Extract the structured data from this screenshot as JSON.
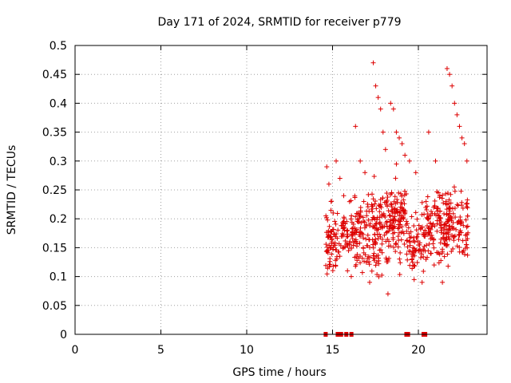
{
  "chart_data": {
    "type": "scatter",
    "title": "Day 171 of 2024, SRMTID for receiver p779",
    "xlabel": "GPS time / hours",
    "ylabel": "SRMTID / TECUs",
    "xlim": [
      0,
      24
    ],
    "ylim": [
      0,
      0.5
    ],
    "xticks": [
      0,
      5,
      10,
      15,
      20
    ],
    "xtick_labels": [
      "0",
      "5",
      "10",
      "15",
      "20"
    ],
    "yticks": [
      0,
      0.05,
      0.1,
      0.15,
      0.2,
      0.25,
      0.3,
      0.35,
      0.4,
      0.45,
      0.5
    ],
    "ytick_labels": [
      "0",
      "0.05",
      "0.1",
      "0.15",
      "0.2",
      "0.25",
      "0.3",
      "0.35",
      "0.4",
      "0.45",
      "0.5"
    ],
    "grid": true,
    "marker": "+",
    "color": "#dd0000",
    "zero_markers_x": [
      14.6,
      15.3,
      15.5,
      15.8,
      16.1,
      19.3,
      19.4,
      20.3,
      20.4
    ],
    "clusters": [
      {
        "x_range": [
          14.6,
          15.1
        ],
        "y_mean": 0.155,
        "y_spread": 0.05,
        "count": 50,
        "high": [
          0.29,
          0.26,
          0.23,
          0.21
        ]
      },
      {
        "x_range": [
          15.1,
          16.2
        ],
        "y_mean": 0.17,
        "y_spread": 0.05,
        "count": 70,
        "high": [
          0.3,
          0.27,
          0.24,
          0.11,
          0.1
        ]
      },
      {
        "x_range": [
          16.2,
          17.3
        ],
        "y_mean": 0.17,
        "y_spread": 0.06,
        "count": 90,
        "high": [
          0.36,
          0.3,
          0.28,
          0.09
        ]
      },
      {
        "x_range": [
          17.3,
          18.3
        ],
        "y_mean": 0.18,
        "y_spread": 0.07,
        "count": 110,
        "high": [
          0.47,
          0.43,
          0.41,
          0.39,
          0.35,
          0.32,
          0.07
        ]
      },
      {
        "x_range": [
          18.3,
          19.3
        ],
        "y_mean": 0.2,
        "y_spread": 0.07,
        "count": 110,
        "high": [
          0.4,
          0.39,
          0.35,
          0.34,
          0.33,
          0.31
        ]
      },
      {
        "x_range": [
          19.3,
          20.4
        ],
        "y_mean": 0.16,
        "y_spread": 0.06,
        "count": 80,
        "high": [
          0.3,
          0.28,
          0.09
        ]
      },
      {
        "x_range": [
          20.4,
          21.6
        ],
        "y_mean": 0.19,
        "y_spread": 0.06,
        "count": 110,
        "high": [
          0.35,
          0.3,
          0.09
        ]
      },
      {
        "x_range": [
          21.6,
          22.9
        ],
        "y_mean": 0.19,
        "y_spread": 0.06,
        "count": 120,
        "high": [
          0.46,
          0.45,
          0.43,
          0.4,
          0.38,
          0.36,
          0.34,
          0.33,
          0.3
        ]
      }
    ]
  }
}
